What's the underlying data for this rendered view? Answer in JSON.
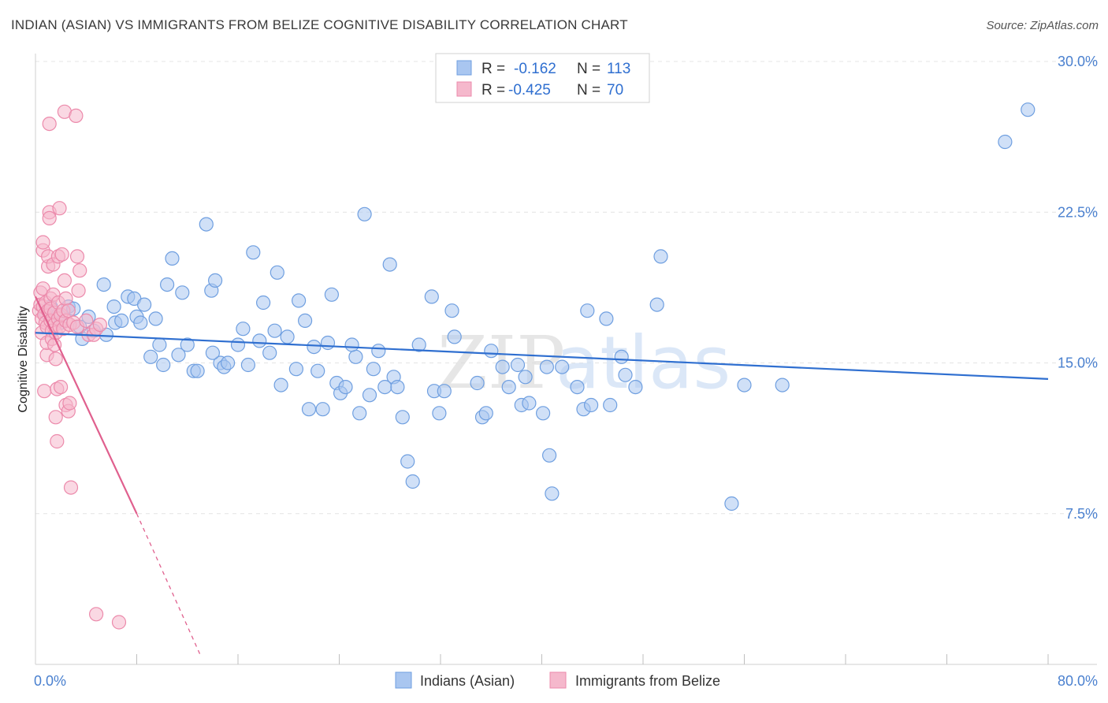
{
  "title": "INDIAN (ASIAN) VS IMMIGRANTS FROM BELIZE COGNITIVE DISABILITY CORRELATION CHART",
  "source": "Source: ZipAtlas.com",
  "watermark": {
    "zip": "ZIP",
    "atlas": "atlas"
  },
  "colors": {
    "blue_fill": "#a9c6f0",
    "blue_stroke": "#6f9fe0",
    "blue_line": "#2f6fd0",
    "pink_fill": "#f5b8cc",
    "pink_stroke": "#ec8aab",
    "pink_line": "#e0608e",
    "axis_text": "#4a80cf",
    "grid": "#e4e4e4"
  },
  "legend": {
    "rows": [
      {
        "r_label": "R =",
        "r_value": "-0.162",
        "n_label": "N =",
        "n_value": "113"
      },
      {
        "r_label": "R =",
        "r_value": "-0.425",
        "n_label": "N =",
        "n_value": "70"
      }
    ]
  },
  "chart_data": {
    "type": "scatter",
    "title": "INDIAN (ASIAN) VS IMMIGRANTS FROM BELIZE COGNITIVE DISABILITY CORRELATION CHART",
    "xlabel": "",
    "ylabel": "Cognitive Disability",
    "xlim": [
      0,
      80
    ],
    "ylim": [
      0,
      30
    ],
    "x_tick_labels": [
      "0.0%",
      "80.0%"
    ],
    "y_ticks": [
      7.5,
      15.0,
      22.5,
      30.0
    ],
    "y_tick_labels": [
      "7.5%",
      "15.0%",
      "22.5%",
      "30.0%"
    ],
    "grid": "horizontal dashed",
    "legend_position": "top-center",
    "series": [
      {
        "name": "Indians (Asian)",
        "color": "#6f9fe0",
        "points": [
          [
            0.8,
            17.5
          ],
          [
            1.2,
            17.8
          ],
          [
            1.8,
            17.4
          ],
          [
            2.0,
            17.0
          ],
          [
            2.6,
            17.8
          ],
          [
            3.0,
            17.7
          ],
          [
            3.7,
            16.2
          ],
          [
            4.2,
            17.3
          ],
          [
            4.6,
            16.6
          ],
          [
            5.4,
            18.9
          ],
          [
            5.6,
            16.4
          ],
          [
            6.2,
            17.8
          ],
          [
            6.3,
            17.0
          ],
          [
            6.8,
            17.1
          ],
          [
            7.3,
            18.3
          ],
          [
            7.8,
            18.2
          ],
          [
            8.0,
            17.3
          ],
          [
            8.3,
            17.0
          ],
          [
            8.6,
            17.9
          ],
          [
            9.1,
            15.3
          ],
          [
            9.5,
            17.2
          ],
          [
            9.8,
            15.9
          ],
          [
            10.1,
            14.9
          ],
          [
            10.4,
            18.9
          ],
          [
            10.8,
            20.2
          ],
          [
            11.3,
            15.4
          ],
          [
            11.6,
            18.5
          ],
          [
            12.0,
            15.9
          ],
          [
            12.5,
            14.6
          ],
          [
            12.8,
            14.6
          ],
          [
            13.5,
            21.9
          ],
          [
            13.9,
            18.6
          ],
          [
            14.2,
            19.1
          ],
          [
            14.6,
            15.0
          ],
          [
            14.9,
            14.8
          ],
          [
            15.2,
            15.0
          ],
          [
            16.0,
            15.9
          ],
          [
            16.4,
            16.7
          ],
          [
            16.8,
            14.9
          ],
          [
            17.2,
            20.5
          ],
          [
            17.7,
            16.1
          ],
          [
            18.0,
            18.0
          ],
          [
            18.5,
            15.5
          ],
          [
            18.9,
            16.6
          ],
          [
            19.1,
            19.5
          ],
          [
            19.4,
            13.9
          ],
          [
            19.9,
            16.3
          ],
          [
            20.6,
            14.7
          ],
          [
            20.8,
            18.1
          ],
          [
            21.3,
            17.1
          ],
          [
            21.6,
            12.7
          ],
          [
            22.0,
            15.8
          ],
          [
            22.3,
            14.6
          ],
          [
            22.7,
            12.7
          ],
          [
            23.1,
            16.0
          ],
          [
            23.4,
            18.4
          ],
          [
            23.8,
            14.0
          ],
          [
            24.1,
            13.5
          ],
          [
            24.5,
            13.8
          ],
          [
            25.3,
            15.3
          ],
          [
            25.6,
            12.5
          ],
          [
            26.0,
            22.4
          ],
          [
            26.4,
            13.4
          ],
          [
            26.7,
            14.7
          ],
          [
            27.1,
            15.6
          ],
          [
            27.6,
            13.8
          ],
          [
            28.0,
            19.9
          ],
          [
            28.3,
            14.3
          ],
          [
            28.6,
            13.8
          ],
          [
            29.0,
            12.3
          ],
          [
            29.4,
            10.1
          ],
          [
            29.8,
            9.1
          ],
          [
            30.3,
            15.9
          ],
          [
            31.3,
            18.3
          ],
          [
            31.5,
            13.6
          ],
          [
            31.9,
            12.5
          ],
          [
            32.3,
            13.6
          ],
          [
            32.9,
            17.6
          ],
          [
            33.1,
            16.3
          ],
          [
            34.9,
            14.0
          ],
          [
            35.3,
            12.3
          ],
          [
            35.6,
            12.5
          ],
          [
            36.0,
            15.6
          ],
          [
            36.9,
            14.8
          ],
          [
            37.4,
            13.8
          ],
          [
            38.1,
            14.9
          ],
          [
            38.4,
            12.9
          ],
          [
            38.7,
            14.3
          ],
          [
            39.0,
            13.0
          ],
          [
            40.1,
            12.5
          ],
          [
            40.4,
            14.8
          ],
          [
            40.6,
            10.4
          ],
          [
            40.8,
            8.5
          ],
          [
            41.6,
            14.8
          ],
          [
            42.8,
            13.8
          ],
          [
            43.3,
            12.7
          ],
          [
            43.6,
            17.6
          ],
          [
            43.9,
            12.9
          ],
          [
            45.1,
            17.2
          ],
          [
            45.4,
            12.9
          ],
          [
            46.3,
            15.3
          ],
          [
            46.6,
            14.4
          ],
          [
            47.4,
            13.8
          ],
          [
            49.1,
            17.9
          ],
          [
            49.4,
            20.3
          ],
          [
            55.0,
            8.0
          ],
          [
            56.0,
            13.9
          ],
          [
            59.0,
            13.9
          ],
          [
            76.6,
            26.0
          ],
          [
            78.4,
            27.6
          ],
          [
            3.5,
            16.8
          ],
          [
            14.0,
            15.5
          ],
          [
            25.0,
            15.9
          ]
        ]
      },
      {
        "name": "Immigrants from Belize",
        "color": "#ec8aab",
        "points": [
          [
            0.3,
            17.6
          ],
          [
            0.4,
            17.9
          ],
          [
            0.4,
            18.5
          ],
          [
            0.5,
            17.2
          ],
          [
            0.5,
            16.5
          ],
          [
            0.6,
            17.8
          ],
          [
            0.6,
            18.7
          ],
          [
            0.6,
            20.6
          ],
          [
            0.6,
            21.0
          ],
          [
            0.7,
            17.4
          ],
          [
            0.7,
            13.6
          ],
          [
            0.8,
            18.0
          ],
          [
            0.8,
            17.0
          ],
          [
            0.9,
            16.8
          ],
          [
            0.9,
            15.4
          ],
          [
            0.9,
            16.0
          ],
          [
            1.0,
            17.6
          ],
          [
            1.0,
            19.8
          ],
          [
            1.0,
            20.3
          ],
          [
            1.1,
            26.9
          ],
          [
            1.1,
            22.5
          ],
          [
            1.1,
            22.2
          ],
          [
            1.2,
            18.2
          ],
          [
            1.2,
            17.7
          ],
          [
            1.2,
            17.1
          ],
          [
            1.3,
            16.6
          ],
          [
            1.3,
            16.2
          ],
          [
            1.4,
            18.4
          ],
          [
            1.4,
            19.9
          ],
          [
            1.5,
            17.5
          ],
          [
            1.5,
            16.9
          ],
          [
            1.5,
            15.9
          ],
          [
            1.6,
            16.5
          ],
          [
            1.6,
            15.2
          ],
          [
            1.6,
            12.3
          ],
          [
            1.7,
            11.1
          ],
          [
            1.7,
            13.7
          ],
          [
            1.8,
            18.0
          ],
          [
            1.8,
            17.2
          ],
          [
            1.8,
            20.3
          ],
          [
            1.9,
            22.7
          ],
          [
            1.9,
            16.8
          ],
          [
            2.0,
            17.4
          ],
          [
            2.0,
            13.8
          ],
          [
            2.1,
            20.4
          ],
          [
            2.2,
            17.6
          ],
          [
            2.2,
            16.7
          ],
          [
            2.3,
            27.5
          ],
          [
            2.3,
            19.1
          ],
          [
            2.4,
            18.2
          ],
          [
            2.4,
            17.1
          ],
          [
            2.4,
            12.9
          ],
          [
            2.6,
            17.6
          ],
          [
            2.6,
            12.6
          ],
          [
            2.7,
            16.9
          ],
          [
            2.7,
            13.0
          ],
          [
            2.8,
            8.8
          ],
          [
            3.0,
            17.0
          ],
          [
            3.2,
            27.3
          ],
          [
            3.3,
            20.3
          ],
          [
            3.3,
            16.8
          ],
          [
            3.4,
            18.6
          ],
          [
            3.5,
            19.6
          ],
          [
            4.0,
            17.1
          ],
          [
            4.2,
            16.4
          ],
          [
            4.6,
            16.4
          ],
          [
            4.8,
            16.7
          ],
          [
            5.1,
            16.9
          ],
          [
            4.8,
            2.5
          ],
          [
            6.6,
            2.1
          ]
        ]
      }
    ],
    "trend_lines": [
      {
        "series": "Indians (Asian)",
        "x": [
          0,
          80
        ],
        "y": [
          16.5,
          14.2
        ]
      },
      {
        "series": "Immigrants from Belize",
        "x": [
          0,
          8
        ],
        "y": [
          18.3,
          7.5
        ],
        "dashed_to": [
          13,
          0.5
        ]
      }
    ]
  }
}
